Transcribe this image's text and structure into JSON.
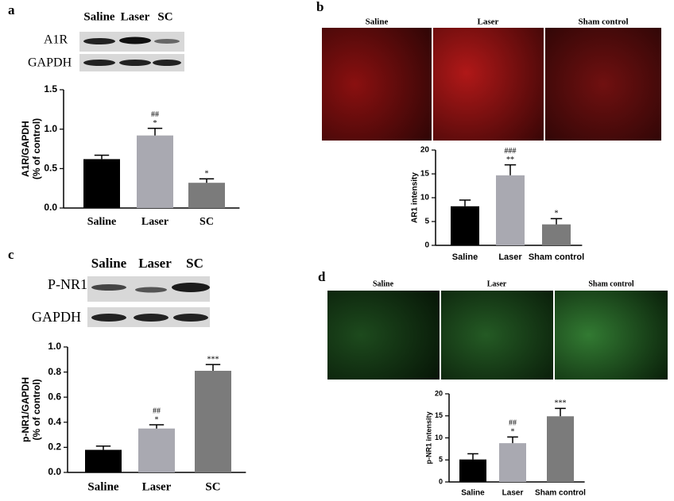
{
  "panel_labels": [
    "a",
    "b",
    "c",
    "d"
  ],
  "blots": [
    {
      "columns": [
        "Saline",
        "Laser",
        "SC"
      ],
      "rows": [
        "A1R",
        "GAPDH"
      ]
    },
    {
      "columns": [
        "Saline",
        "Laser",
        "SC"
      ],
      "rows": [
        "P-NR1",
        "GAPDH"
      ]
    }
  ],
  "images": [
    {
      "columns": [
        "Saline",
        "Laser",
        "Sham control"
      ]
    },
    {
      "columns": [
        "Saline",
        "Laser",
        "Sham control"
      ]
    }
  ],
  "chart_data": [
    {
      "type": "bar",
      "ylabel": [
        "A1R/GAPDH",
        "(% of control)"
      ],
      "categories": [
        "Saline",
        "Laser",
        "SC"
      ],
      "values": [
        0.62,
        0.92,
        0.32
      ],
      "errors": [
        0.05,
        0.09,
        0.05
      ],
      "significance": [
        null,
        [
          "##",
          "*"
        ],
        [
          "*"
        ]
      ],
      "colors": [
        "#000000",
        "#a9a9b1",
        "#7b7b7b"
      ],
      "ylim": [
        0,
        1.5
      ],
      "yticks": [
        {
          "value": 0,
          "label": "0.0"
        },
        0.5,
        {
          "value": 1,
          "label": "1.0"
        },
        1.5
      ]
    },
    {
      "type": "bar",
      "ylabel": [
        "AR1 intensity"
      ],
      "categories": [
        "Saline",
        "Laser",
        "Sham control"
      ],
      "values": [
        8.2,
        14.7,
        4.4
      ],
      "errors": [
        1.3,
        2.2,
        1.2
      ],
      "significance": [
        null,
        [
          "###",
          "**"
        ],
        [
          "*"
        ]
      ],
      "colors": [
        "#000000",
        "#a9a9b1",
        "#7b7b7b"
      ],
      "ylim": [
        0,
        20
      ],
      "yticks": [
        0,
        5,
        10,
        15,
        20
      ]
    },
    {
      "type": "bar",
      "ylabel": [
        "p-NR1/GAPDH",
        "(% of control)"
      ],
      "categories": [
        "Saline",
        "Laser",
        "SC"
      ],
      "values": [
        0.18,
        0.35,
        0.81
      ],
      "errors": [
        0.03,
        0.03,
        0.05
      ],
      "significance": [
        null,
        [
          "##",
          "*"
        ],
        [
          "***"
        ]
      ],
      "colors": [
        "#000000",
        "#a9a9b1",
        "#7b7b7b"
      ],
      "ylim": [
        0,
        1
      ],
      "yticks": [
        {
          "value": 0,
          "label": "0.0"
        },
        0.2,
        0.4,
        0.6,
        0.8,
        {
          "value": 1,
          "label": "1.0"
        }
      ]
    },
    {
      "type": "bar",
      "ylabel": [
        "p-NR1 intensity"
      ],
      "categories": [
        "Saline",
        "Laser",
        "Sham control"
      ],
      "values": [
        5.1,
        8.8,
        14.9
      ],
      "errors": [
        1.3,
        1.4,
        1.8
      ],
      "significance": [
        null,
        [
          "##",
          "*"
        ],
        [
          "***"
        ]
      ],
      "colors": [
        "#000000",
        "#a9a9b1",
        "#7b7b7b"
      ],
      "ylim": [
        0,
        20
      ],
      "yticks": [
        0,
        5,
        10,
        15,
        20
      ]
    }
  ]
}
